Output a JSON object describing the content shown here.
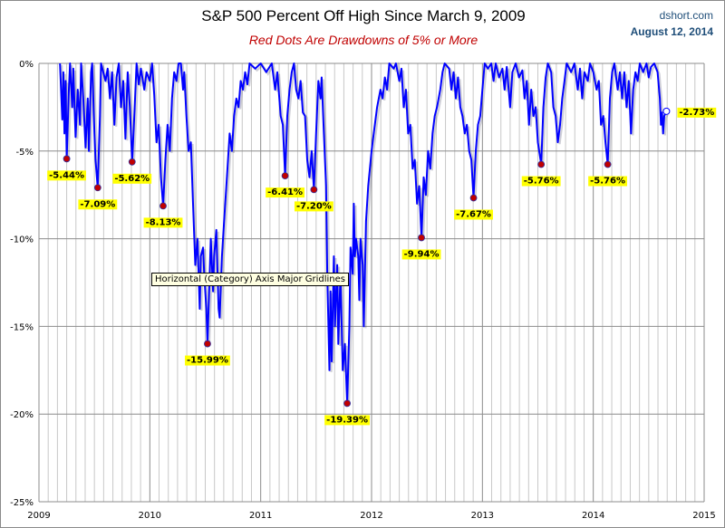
{
  "header": {
    "title": "S&P 500 Percent Off High Since March 9, 2009",
    "subtitle": "Red Dots Are Drawdowns of 5% or More",
    "source": "dshort.com",
    "date": "August 12, 2014"
  },
  "tooltip": "Horizontal (Category) Axis Major Gridlines",
  "chart_data": {
    "type": "line",
    "title": "S&P 500 Percent Off High Since March 9, 2009",
    "subtitle": "Red Dots Are Drawdowns of 5% or More",
    "xlim": [
      2009,
      2015
    ],
    "ylim": [
      -25,
      0
    ],
    "x_ticks": [
      "2009",
      "2010",
      "2011",
      "2012",
      "2013",
      "2014",
      "2015"
    ],
    "y_ticks": [
      "0%",
      "-5%",
      "-10%",
      "-15%",
      "-20%",
      "-25%"
    ],
    "grid": {
      "horizontal": true,
      "vertical": "monthly"
    },
    "colors": {
      "line": "#0000ff",
      "drawdown_dot": "#c00000",
      "label_bg": "#ffff00",
      "current_dot": "#ffffff"
    },
    "series": [
      {
        "values": [
          [
            2009.19,
            0
          ],
          [
            2009.21,
            -3.2
          ],
          [
            2009.22,
            -0.5
          ],
          [
            2009.23,
            -4
          ],
          [
            2009.24,
            -1
          ],
          [
            2009.25,
            -5.44
          ],
          [
            2009.27,
            -1.5
          ],
          [
            2009.28,
            0
          ],
          [
            2009.3,
            -2.5
          ],
          [
            2009.31,
            -0.3
          ],
          [
            2009.33,
            -4.2
          ],
          [
            2009.35,
            -1.5
          ],
          [
            2009.37,
            -3.5
          ],
          [
            2009.38,
            0
          ],
          [
            2009.4,
            -2
          ],
          [
            2009.42,
            -4.8
          ],
          [
            2009.44,
            -2
          ],
          [
            2009.45,
            -5
          ],
          [
            2009.47,
            -0.5
          ],
          [
            2009.48,
            0
          ],
          [
            2009.5,
            -4
          ],
          [
            2009.51,
            -5.5
          ],
          [
            2009.53,
            -7.09
          ],
          [
            2009.55,
            -3
          ],
          [
            2009.56,
            0
          ],
          [
            2009.6,
            -1
          ],
          [
            2009.62,
            -0.3
          ],
          [
            2009.64,
            -2
          ],
          [
            2009.66,
            -0.5
          ],
          [
            2009.68,
            -3.5
          ],
          [
            2009.7,
            -0.8
          ],
          [
            2009.72,
            0
          ],
          [
            2009.74,
            -2.5
          ],
          [
            2009.76,
            -1
          ],
          [
            2009.78,
            -4.3
          ],
          [
            2009.8,
            -0.5
          ],
          [
            2009.82,
            -2.5
          ],
          [
            2009.84,
            -5.62
          ],
          [
            2009.86,
            -3
          ],
          [
            2009.88,
            0
          ],
          [
            2009.9,
            -1.2
          ],
          [
            2009.92,
            -0.3
          ],
          [
            2009.95,
            -1.5
          ],
          [
            2009.97,
            -0.5
          ],
          [
            2010.0,
            -1
          ],
          [
            2010.02,
            0
          ],
          [
            2010.04,
            -1.8
          ],
          [
            2010.06,
            -4.5
          ],
          [
            2010.08,
            -3.5
          ],
          [
            2010.1,
            -6.5
          ],
          [
            2010.12,
            -8.13
          ],
          [
            2010.14,
            -5.5
          ],
          [
            2010.16,
            -3.5
          ],
          [
            2010.18,
            -5
          ],
          [
            2010.2,
            -2
          ],
          [
            2010.22,
            -0.5
          ],
          [
            2010.24,
            -1
          ],
          [
            2010.26,
            0
          ],
          [
            2010.28,
            0
          ],
          [
            2010.3,
            -1.5
          ],
          [
            2010.31,
            -0.5
          ],
          [
            2010.33,
            -3
          ],
          [
            2010.35,
            -5
          ],
          [
            2010.37,
            -4.5
          ],
          [
            2010.39,
            -8
          ],
          [
            2010.41,
            -11.5
          ],
          [
            2010.43,
            -10
          ],
          [
            2010.45,
            -14
          ],
          [
            2010.46,
            -11
          ],
          [
            2010.48,
            -10.5
          ],
          [
            2010.49,
            -12
          ],
          [
            2010.51,
            -14
          ],
          [
            2010.52,
            -15.99
          ],
          [
            2010.54,
            -12
          ],
          [
            2010.55,
            -10
          ],
          [
            2010.57,
            -13
          ],
          [
            2010.58,
            -11
          ],
          [
            2010.6,
            -9.5
          ],
          [
            2010.62,
            -14
          ],
          [
            2010.63,
            -14.5
          ],
          [
            2010.65,
            -11
          ],
          [
            2010.67,
            -9
          ],
          [
            2010.7,
            -6
          ],
          [
            2010.72,
            -4
          ],
          [
            2010.74,
            -5
          ],
          [
            2010.76,
            -3
          ],
          [
            2010.78,
            -2
          ],
          [
            2010.8,
            -2.5
          ],
          [
            2010.82,
            -1
          ],
          [
            2010.84,
            -1.5
          ],
          [
            2010.86,
            -0.5
          ],
          [
            2010.88,
            -1.2
          ],
          [
            2010.9,
            0
          ],
          [
            2010.95,
            -0.3
          ],
          [
            2011.0,
            0
          ],
          [
            2011.05,
            -0.5
          ],
          [
            2011.1,
            0
          ],
          [
            2011.13,
            -1.5
          ],
          [
            2011.15,
            -0.5
          ],
          [
            2011.18,
            -3
          ],
          [
            2011.2,
            -3.5
          ],
          [
            2011.22,
            -6.41
          ],
          [
            2011.24,
            -3
          ],
          [
            2011.26,
            -1.5
          ],
          [
            2011.28,
            -0.5
          ],
          [
            2011.3,
            0
          ],
          [
            2011.32,
            -1.5
          ],
          [
            2011.34,
            -2
          ],
          [
            2011.36,
            -1
          ],
          [
            2011.38,
            -2.8
          ],
          [
            2011.4,
            -3
          ],
          [
            2011.42,
            -5.5
          ],
          [
            2011.44,
            -6.5
          ],
          [
            2011.46,
            -5
          ],
          [
            2011.48,
            -7.2
          ],
          [
            2011.5,
            -4
          ],
          [
            2011.52,
            -1
          ],
          [
            2011.54,
            -2
          ],
          [
            2011.55,
            -0.8
          ],
          [
            2011.57,
            -4
          ],
          [
            2011.59,
            -7
          ],
          [
            2011.6,
            -12
          ],
          [
            2011.62,
            -17.5
          ],
          [
            2011.63,
            -13
          ],
          [
            2011.64,
            -17
          ],
          [
            2011.66,
            -11
          ],
          [
            2011.67,
            -15
          ],
          [
            2011.69,
            -11.5
          ],
          [
            2011.7,
            -16
          ],
          [
            2011.72,
            -12
          ],
          [
            2011.74,
            -17.5
          ],
          [
            2011.76,
            -16
          ],
          [
            2011.78,
            -19.39
          ],
          [
            2011.8,
            -15
          ],
          [
            2011.81,
            -10.5
          ],
          [
            2011.83,
            -12
          ],
          [
            2011.84,
            -8
          ],
          [
            2011.85,
            -11
          ],
          [
            2011.86,
            -10
          ],
          [
            2011.88,
            -11
          ],
          [
            2011.89,
            -13.5
          ],
          [
            2011.9,
            -10
          ],
          [
            2011.92,
            -11.5
          ],
          [
            2011.93,
            -15
          ],
          [
            2011.95,
            -9
          ],
          [
            2011.97,
            -7
          ],
          [
            2012.0,
            -5
          ],
          [
            2012.02,
            -4
          ],
          [
            2012.05,
            -2.5
          ],
          [
            2012.08,
            -1.5
          ],
          [
            2012.1,
            -2
          ],
          [
            2012.12,
            -0.8
          ],
          [
            2012.14,
            -1.5
          ],
          [
            2012.16,
            0
          ],
          [
            2012.2,
            -0.3
          ],
          [
            2012.22,
            0
          ],
          [
            2012.25,
            -1
          ],
          [
            2012.27,
            -0.3
          ],
          [
            2012.29,
            -2.5
          ],
          [
            2012.31,
            -1.5
          ],
          [
            2012.33,
            -4
          ],
          [
            2012.35,
            -3.5
          ],
          [
            2012.37,
            -6
          ],
          [
            2012.39,
            -5.5
          ],
          [
            2012.41,
            -8
          ],
          [
            2012.43,
            -7
          ],
          [
            2012.45,
            -9.94
          ],
          [
            2012.47,
            -6.5
          ],
          [
            2012.49,
            -7.5
          ],
          [
            2012.51,
            -5
          ],
          [
            2012.53,
            -6
          ],
          [
            2012.55,
            -4
          ],
          [
            2012.57,
            -3
          ],
          [
            2012.59,
            -2.5
          ],
          [
            2012.62,
            -1.5
          ],
          [
            2012.64,
            -0.5
          ],
          [
            2012.66,
            0
          ],
          [
            2012.7,
            -0.3
          ],
          [
            2012.72,
            -1.5
          ],
          [
            2012.74,
            -0.5
          ],
          [
            2012.76,
            -2
          ],
          [
            2012.78,
            -0.8
          ],
          [
            2012.8,
            -2.5
          ],
          [
            2012.82,
            -3
          ],
          [
            2012.84,
            -4
          ],
          [
            2012.86,
            -3.5
          ],
          [
            2012.88,
            -5
          ],
          [
            2012.9,
            -5.5
          ],
          [
            2012.92,
            -7.67
          ],
          [
            2012.94,
            -5
          ],
          [
            2012.96,
            -3.5
          ],
          [
            2012.98,
            -3
          ],
          [
            2013.0,
            -1.5
          ],
          [
            2013.02,
            0
          ],
          [
            2013.05,
            -0.3
          ],
          [
            2013.08,
            0
          ],
          [
            2013.1,
            -1
          ],
          [
            2013.12,
            0
          ],
          [
            2013.15,
            -0.8
          ],
          [
            2013.18,
            -0.3
          ],
          [
            2013.2,
            -1.5
          ],
          [
            2013.22,
            -0.2
          ],
          [
            2013.25,
            -2.5
          ],
          [
            2013.27,
            -0.5
          ],
          [
            2013.3,
            0
          ],
          [
            2013.33,
            -0.8
          ],
          [
            2013.36,
            -0.4
          ],
          [
            2013.38,
            -2
          ],
          [
            2013.4,
            -1
          ],
          [
            2013.42,
            -3.5
          ],
          [
            2013.44,
            -1.5
          ],
          [
            2013.46,
            -3
          ],
          [
            2013.48,
            -2.5
          ],
          [
            2013.5,
            -4.5
          ],
          [
            2013.53,
            -5.76
          ],
          [
            2013.55,
            -2.5
          ],
          [
            2013.57,
            -0.8
          ],
          [
            2013.59,
            0
          ],
          [
            2013.62,
            -0.5
          ],
          [
            2013.64,
            -2.5
          ],
          [
            2013.66,
            -3
          ],
          [
            2013.68,
            -4.5
          ],
          [
            2013.7,
            -3.5
          ],
          [
            2013.72,
            -2
          ],
          [
            2013.74,
            -1
          ],
          [
            2013.76,
            0
          ],
          [
            2013.8,
            -0.5
          ],
          [
            2013.83,
            0
          ],
          [
            2013.86,
            -1.5
          ],
          [
            2013.88,
            -0.3
          ],
          [
            2013.9,
            -2
          ],
          [
            2013.92,
            -0.5
          ],
          [
            2013.95,
            -1
          ],
          [
            2013.97,
            0
          ],
          [
            2014.0,
            -0.5
          ],
          [
            2014.03,
            -1.5
          ],
          [
            2014.05,
            -1
          ],
          [
            2014.07,
            -3.5
          ],
          [
            2014.09,
            -3
          ],
          [
            2014.11,
            -4.5
          ],
          [
            2014.13,
            -5.76
          ],
          [
            2014.15,
            -2
          ],
          [
            2014.17,
            -0.5
          ],
          [
            2014.19,
            0
          ],
          [
            2014.22,
            -1.5
          ],
          [
            2014.24,
            -0.5
          ],
          [
            2014.26,
            -2
          ],
          [
            2014.28,
            -0.5
          ],
          [
            2014.3,
            -2.5
          ],
          [
            2014.32,
            -1
          ],
          [
            2014.34,
            -4
          ],
          [
            2014.36,
            -1.5
          ],
          [
            2014.38,
            -0.5
          ],
          [
            2014.4,
            -1
          ],
          [
            2014.42,
            0
          ],
          [
            2014.45,
            -0.5
          ],
          [
            2014.48,
            0
          ],
          [
            2014.5,
            -0.8
          ],
          [
            2014.52,
            -0.2
          ],
          [
            2014.55,
            0
          ],
          [
            2014.58,
            -0.5
          ],
          [
            2014.6,
            -2
          ],
          [
            2014.61,
            -3.5
          ],
          [
            2014.62,
            -2.8
          ],
          [
            2014.63,
            -4
          ],
          [
            2014.64,
            -3
          ],
          [
            2014.66,
            -2.73
          ]
        ]
      }
    ],
    "drawdowns": [
      {
        "x": 2009.25,
        "y": -5.44,
        "label": "-5.44%"
      },
      {
        "x": 2009.53,
        "y": -7.09,
        "label": "-7.09%"
      },
      {
        "x": 2009.84,
        "y": -5.62,
        "label": "-5.62%"
      },
      {
        "x": 2010.12,
        "y": -8.13,
        "label": "-8.13%"
      },
      {
        "x": 2010.52,
        "y": -15.99,
        "label": "-15.99%"
      },
      {
        "x": 2011.22,
        "y": -6.41,
        "label": "-6.41%"
      },
      {
        "x": 2011.48,
        "y": -7.2,
        "label": "-7.20%"
      },
      {
        "x": 2011.78,
        "y": -19.39,
        "label": "-19.39%"
      },
      {
        "x": 2012.45,
        "y": -9.94,
        "label": "-9.94%"
      },
      {
        "x": 2012.92,
        "y": -7.67,
        "label": "-7.67%"
      },
      {
        "x": 2013.53,
        "y": -5.76,
        "label": "-5.76%"
      },
      {
        "x": 2014.13,
        "y": -5.76,
        "label": "-5.76%"
      }
    ],
    "current": {
      "x": 2014.66,
      "y": -2.73,
      "label": "-2.73%"
    }
  }
}
